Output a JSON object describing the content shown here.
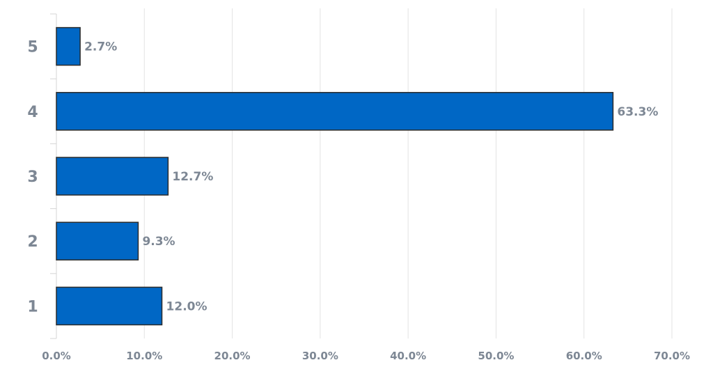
{
  "chart_data": {
    "type": "bar",
    "orientation": "horizontal",
    "title": "",
    "xlabel": "",
    "ylabel": "",
    "categories": [
      "5",
      "4",
      "3",
      "2",
      "1"
    ],
    "values": [
      2.7,
      63.3,
      12.7,
      9.3,
      12.0
    ],
    "data_labels": [
      "2.7%",
      "63.3%",
      "12.7%",
      "9.3%",
      "12.0%"
    ],
    "xlim": [
      0,
      70
    ],
    "x_ticks": [
      0,
      10,
      20,
      30,
      40,
      50,
      60,
      70
    ],
    "x_tick_labels": [
      "0.0%",
      "10.0%",
      "20.0%",
      "30.0%",
      "40.0%",
      "50.0%",
      "60.0%",
      "70.0%"
    ],
    "grid": "vertical",
    "legend": "none",
    "colors": {
      "bar_fill": "#0067c5",
      "bar_stroke": "#2b2b2b",
      "label_text": "#7d8794",
      "grid": "#e3e3e3"
    }
  }
}
